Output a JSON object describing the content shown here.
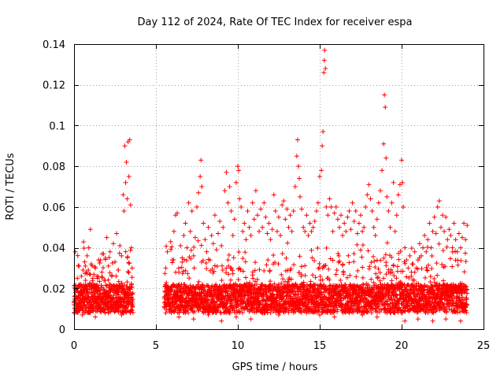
{
  "chart_data": {
    "type": "scatter",
    "title": "Day 112 of 2024, Rate Of TEC Index for receiver espa",
    "xlabel": "GPS time / hours",
    "ylabel": "ROTI / TECUs",
    "xlim": [
      0,
      25
    ],
    "ylim": [
      0,
      0.14
    ],
    "grid": true,
    "marker": "+",
    "color": "#ff0000",
    "x_ticks": [
      {
        "value": 0,
        "label": "0"
      },
      {
        "value": 5,
        "label": "5"
      },
      {
        "value": 10,
        "label": "10"
      },
      {
        "value": 15,
        "label": "15"
      },
      {
        "value": 20,
        "label": "20"
      },
      {
        "value": 25,
        "label": "25"
      }
    ],
    "y_ticks": [
      {
        "value": 0,
        "label": "0"
      },
      {
        "value": 0.02,
        "label": "0.02"
      },
      {
        "value": 0.04,
        "label": "0.04"
      },
      {
        "value": 0.06,
        "label": "0.06"
      },
      {
        "value": 0.08,
        "label": "0.08"
      },
      {
        "value": 0.1,
        "label": "0.1"
      },
      {
        "value": 0.12,
        "label": "0.12"
      },
      {
        "value": 0.14,
        "label": "0.14"
      }
    ],
    "data_gap_hours": [
      3.6,
      5.5
    ],
    "series": [
      {
        "name": "ROTI",
        "points": [
          [
            0.0,
            0.012
          ],
          [
            0.05,
            0.016
          ],
          [
            0.1,
            0.01
          ],
          [
            0.15,
            0.02
          ],
          [
            0.2,
            0.025
          ],
          [
            0.25,
            0.018
          ],
          [
            0.3,
            0.031
          ],
          [
            0.35,
            0.014
          ],
          [
            0.4,
            0.022
          ],
          [
            0.45,
            0.026
          ],
          [
            0.5,
            0.015
          ],
          [
            0.55,
            0.029
          ],
          [
            0.6,
            0.019
          ],
          [
            0.65,
            0.033
          ],
          [
            0.7,
            0.024
          ],
          [
            0.75,
            0.028
          ],
          [
            0.8,
            0.036
          ],
          [
            0.85,
            0.021
          ],
          [
            0.9,
            0.04
          ],
          [
            0.95,
            0.027
          ],
          [
            1.0,
            0.049
          ],
          [
            1.05,
            0.032
          ],
          [
            1.1,
            0.018
          ],
          [
            1.15,
            0.025
          ],
          [
            1.2,
            0.022
          ],
          [
            1.3,
            0.03
          ],
          [
            1.4,
            0.026
          ],
          [
            1.5,
            0.034
          ],
          [
            1.6,
            0.019
          ],
          [
            1.7,
            0.028
          ],
          [
            1.8,
            0.037
          ],
          [
            1.9,
            0.024
          ],
          [
            2.0,
            0.045
          ],
          [
            2.1,
            0.031
          ],
          [
            2.2,
            0.038
          ],
          [
            2.3,
            0.026
          ],
          [
            2.4,
            0.042
          ],
          [
            2.5,
            0.033
          ],
          [
            2.6,
            0.047
          ],
          [
            2.7,
            0.029
          ],
          [
            2.8,
            0.041
          ],
          [
            2.9,
            0.036
          ],
          [
            3.0,
            0.066
          ],
          [
            3.05,
            0.058
          ],
          [
            3.1,
            0.09
          ],
          [
            3.15,
            0.072
          ],
          [
            3.2,
            0.082
          ],
          [
            3.25,
            0.064
          ],
          [
            3.3,
            0.092
          ],
          [
            3.35,
            0.075
          ],
          [
            3.4,
            0.093
          ],
          [
            3.45,
            0.061
          ],
          [
            3.5,
            0.04
          ],
          [
            3.55,
            0.03
          ],
          [
            0.02,
            0.008
          ],
          [
            0.3,
            0.011
          ],
          [
            0.7,
            0.009
          ],
          [
            1.1,
            0.01
          ],
          [
            1.5,
            0.012
          ],
          [
            1.9,
            0.008
          ],
          [
            2.3,
            0.011
          ],
          [
            2.7,
            0.009
          ],
          [
            3.1,
            0.01
          ],
          [
            3.5,
            0.012
          ],
          [
            0.5,
            0.007
          ],
          [
            1.3,
            0.006
          ],
          [
            2.1,
            0.008
          ],
          [
            2.9,
            0.007
          ],
          [
            5.5,
            0.011
          ],
          [
            5.6,
            0.03
          ],
          [
            5.7,
            0.038
          ],
          [
            5.8,
            0.018
          ],
          [
            5.9,
            0.043
          ],
          [
            6.0,
            0.034
          ],
          [
            6.1,
            0.048
          ],
          [
            6.2,
            0.056
          ],
          [
            6.3,
            0.057
          ],
          [
            6.4,
            0.028
          ],
          [
            6.5,
            0.041
          ],
          [
            6.6,
            0.035
          ],
          [
            6.7,
            0.046
          ],
          [
            6.8,
            0.052
          ],
          [
            6.9,
            0.04
          ],
          [
            7.0,
            0.062
          ],
          [
            7.1,
            0.048
          ],
          [
            7.2,
            0.058
          ],
          [
            7.3,
            0.036
          ],
          [
            7.4,
            0.045
          ],
          [
            7.5,
            0.06
          ],
          [
            7.6,
            0.067
          ],
          [
            7.7,
            0.075
          ],
          [
            7.75,
            0.083
          ],
          [
            7.8,
            0.07
          ],
          [
            7.9,
            0.052
          ],
          [
            8.0,
            0.044
          ],
          [
            8.1,
            0.038
          ],
          [
            8.2,
            0.05
          ],
          [
            8.3,
            0.034
          ],
          [
            8.4,
            0.046
          ],
          [
            8.5,
            0.042
          ],
          [
            8.6,
            0.056
          ],
          [
            8.7,
            0.039
          ],
          [
            8.8,
            0.047
          ],
          [
            8.9,
            0.053
          ],
          [
            9.0,
            0.041
          ],
          [
            9.1,
            0.05
          ],
          [
            9.2,
            0.068
          ],
          [
            9.3,
            0.077
          ],
          [
            9.4,
            0.062
          ],
          [
            9.5,
            0.07
          ],
          [
            9.6,
            0.058
          ],
          [
            9.7,
            0.046
          ],
          [
            9.8,
            0.054
          ],
          [
            9.9,
            0.072
          ],
          [
            10.0,
            0.08
          ],
          [
            10.05,
            0.078
          ],
          [
            10.1,
            0.064
          ],
          [
            10.2,
            0.06
          ],
          [
            10.3,
            0.048
          ],
          [
            10.4,
            0.052
          ],
          [
            10.5,
            0.044
          ],
          [
            10.6,
            0.058
          ],
          [
            10.7,
            0.05
          ],
          [
            10.8,
            0.046
          ],
          [
            10.9,
            0.062
          ],
          [
            11.0,
            0.054
          ],
          [
            11.1,
            0.068
          ],
          [
            11.2,
            0.056
          ],
          [
            11.3,
            0.048
          ],
          [
            11.4,
            0.059
          ],
          [
            11.5,
            0.05
          ],
          [
            11.6,
            0.062
          ],
          [
            11.7,
            0.055
          ],
          [
            11.8,
            0.047
          ],
          [
            11.9,
            0.052
          ],
          [
            12.0,
            0.044
          ],
          [
            12.1,
            0.049
          ],
          [
            12.2,
            0.066
          ],
          [
            12.3,
            0.058
          ],
          [
            12.4,
            0.048
          ],
          [
            12.5,
            0.055
          ],
          [
            12.6,
            0.046
          ],
          [
            12.7,
            0.061
          ],
          [
            12.8,
            0.063
          ],
          [
            12.9,
            0.054
          ],
          [
            13.0,
            0.059
          ],
          [
            13.1,
            0.05
          ],
          [
            13.2,
            0.056
          ],
          [
            13.3,
            0.048
          ],
          [
            13.4,
            0.058
          ],
          [
            13.5,
            0.07
          ],
          [
            13.6,
            0.085
          ],
          [
            13.65,
            0.093
          ],
          [
            13.7,
            0.08
          ],
          [
            13.75,
            0.074
          ],
          [
            13.8,
            0.065
          ],
          [
            13.9,
            0.059
          ],
          [
            14.0,
            0.05
          ],
          [
            14.1,
            0.048
          ],
          [
            14.2,
            0.056
          ],
          [
            14.3,
            0.046
          ],
          [
            14.4,
            0.052
          ],
          [
            14.5,
            0.048
          ],
          [
            14.6,
            0.05
          ],
          [
            14.7,
            0.053
          ],
          [
            14.8,
            0.058
          ],
          [
            14.9,
            0.062
          ],
          [
            15.0,
            0.075
          ],
          [
            15.1,
            0.078
          ],
          [
            15.15,
            0.09
          ],
          [
            15.2,
            0.097
          ],
          [
            15.25,
            0.126
          ],
          [
            15.28,
            0.132
          ],
          [
            15.3,
            0.137
          ],
          [
            15.35,
            0.128
          ],
          [
            15.4,
            0.06
          ],
          [
            15.5,
            0.056
          ],
          [
            15.6,
            0.064
          ],
          [
            15.7,
            0.06
          ],
          [
            15.8,
            0.048
          ],
          [
            15.9,
            0.057
          ],
          [
            16.0,
            0.06
          ],
          [
            16.1,
            0.054
          ],
          [
            16.2,
            0.05
          ],
          [
            16.3,
            0.056
          ],
          [
            16.4,
            0.046
          ],
          [
            16.5,
            0.052
          ],
          [
            16.6,
            0.048
          ],
          [
            16.7,
            0.055
          ],
          [
            16.8,
            0.058
          ],
          [
            16.9,
            0.049
          ],
          [
            17.0,
            0.062
          ],
          [
            17.1,
            0.053
          ],
          [
            17.2,
            0.058
          ],
          [
            17.3,
            0.047
          ],
          [
            17.4,
            0.052
          ],
          [
            17.5,
            0.056
          ],
          [
            17.6,
            0.048
          ],
          [
            17.7,
            0.05
          ],
          [
            17.8,
            0.06
          ],
          [
            17.9,
            0.066
          ],
          [
            18.0,
            0.071
          ],
          [
            18.1,
            0.064
          ],
          [
            18.2,
            0.058
          ],
          [
            18.3,
            0.05
          ],
          [
            18.4,
            0.046
          ],
          [
            18.5,
            0.054
          ],
          [
            18.6,
            0.062
          ],
          [
            18.7,
            0.068
          ],
          [
            18.8,
            0.078
          ],
          [
            18.9,
            0.091
          ],
          [
            18.95,
            0.115
          ],
          [
            19.0,
            0.109
          ],
          [
            19.05,
            0.084
          ],
          [
            19.1,
            0.065
          ],
          [
            19.2,
            0.058
          ],
          [
            19.3,
            0.05
          ],
          [
            19.4,
            0.062
          ],
          [
            19.5,
            0.072
          ],
          [
            19.6,
            0.048
          ],
          [
            19.7,
            0.056
          ],
          [
            19.8,
            0.066
          ],
          [
            19.9,
            0.071
          ],
          [
            20.0,
            0.083
          ],
          [
            20.05,
            0.072
          ],
          [
            20.1,
            0.06
          ],
          [
            20.2,
            0.04
          ],
          [
            20.3,
            0.034
          ],
          [
            20.4,
            0.03
          ],
          [
            20.5,
            0.036
          ],
          [
            20.6,
            0.028
          ],
          [
            20.7,
            0.032
          ],
          [
            20.8,
            0.038
          ],
          [
            20.9,
            0.03
          ],
          [
            21.0,
            0.034
          ],
          [
            21.1,
            0.042
          ],
          [
            21.2,
            0.036
          ],
          [
            21.3,
            0.04
          ],
          [
            21.4,
            0.046
          ],
          [
            21.5,
            0.038
          ],
          [
            21.6,
            0.044
          ],
          [
            21.7,
            0.052
          ],
          [
            21.8,
            0.04
          ],
          [
            21.9,
            0.048
          ],
          [
            22.0,
            0.055
          ],
          [
            22.1,
            0.047
          ],
          [
            22.2,
            0.06
          ],
          [
            22.3,
            0.063
          ],
          [
            22.4,
            0.05
          ],
          [
            22.5,
            0.056
          ],
          [
            22.6,
            0.048
          ],
          [
            22.7,
            0.055
          ],
          [
            22.8,
            0.044
          ],
          [
            22.9,
            0.049
          ],
          [
            23.0,
            0.046
          ],
          [
            23.1,
            0.04
          ],
          [
            23.2,
            0.052
          ],
          [
            23.3,
            0.044
          ],
          [
            23.4,
            0.038
          ],
          [
            23.5,
            0.047
          ],
          [
            23.6,
            0.04
          ],
          [
            23.7,
            0.045
          ],
          [
            23.8,
            0.052
          ],
          [
            23.9,
            0.044
          ],
          [
            24.0,
            0.051
          ],
          [
            5.6,
            0.008
          ],
          [
            6.4,
            0.006
          ],
          [
            7.3,
            0.005
          ],
          [
            8.2,
            0.007
          ],
          [
            9.0,
            0.004
          ],
          [
            9.9,
            0.006
          ],
          [
            10.8,
            0.005
          ],
          [
            11.6,
            0.008
          ],
          [
            12.5,
            0.007
          ],
          [
            13.3,
            0.009
          ],
          [
            14.2,
            0.008
          ],
          [
            15.0,
            0.007
          ],
          [
            15.9,
            0.006
          ],
          [
            16.8,
            0.008
          ],
          [
            17.6,
            0.007
          ],
          [
            18.5,
            0.006
          ],
          [
            19.3,
            0.008
          ],
          [
            20.2,
            0.004
          ],
          [
            21.0,
            0.005
          ],
          [
            21.9,
            0.004
          ],
          [
            22.7,
            0.005
          ],
          [
            23.6,
            0.004
          ]
        ]
      }
    ]
  }
}
